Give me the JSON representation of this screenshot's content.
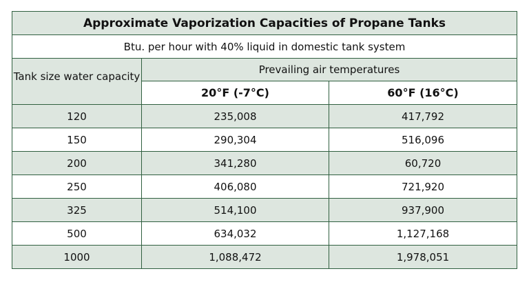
{
  "table": {
    "title": "Approximate Vaporization Capacities of Propane Tanks",
    "subtitle": "Btu. per hour with 40% liquid in domestic tank system",
    "col_header_left": "Tank size water capacity",
    "col_group_header": "Prevailing air temperatures",
    "temp_headers": [
      "20°F (-7°C)",
      "60°F (16°C)"
    ],
    "rows": [
      {
        "size": "120",
        "t20": "235,008",
        "t60": "417,792"
      },
      {
        "size": "150",
        "t20": "290,304",
        "t60": "516,096"
      },
      {
        "size": "200",
        "t20": "341,280",
        "t60": "60,720"
      },
      {
        "size": "250",
        "t20": "406,080",
        "t60": "721,920"
      },
      {
        "size": "325",
        "t20": "514,100",
        "t60": "937,900"
      },
      {
        "size": "500",
        "t20": "634,032",
        "t60": "1,127,168"
      },
      {
        "size": "1000",
        "t20": "1,088,472",
        "t60": "1,978,051"
      }
    ],
    "colors": {
      "border": "#2f5f3f",
      "shade": "#dde6df",
      "plain": "#ffffff"
    }
  }
}
